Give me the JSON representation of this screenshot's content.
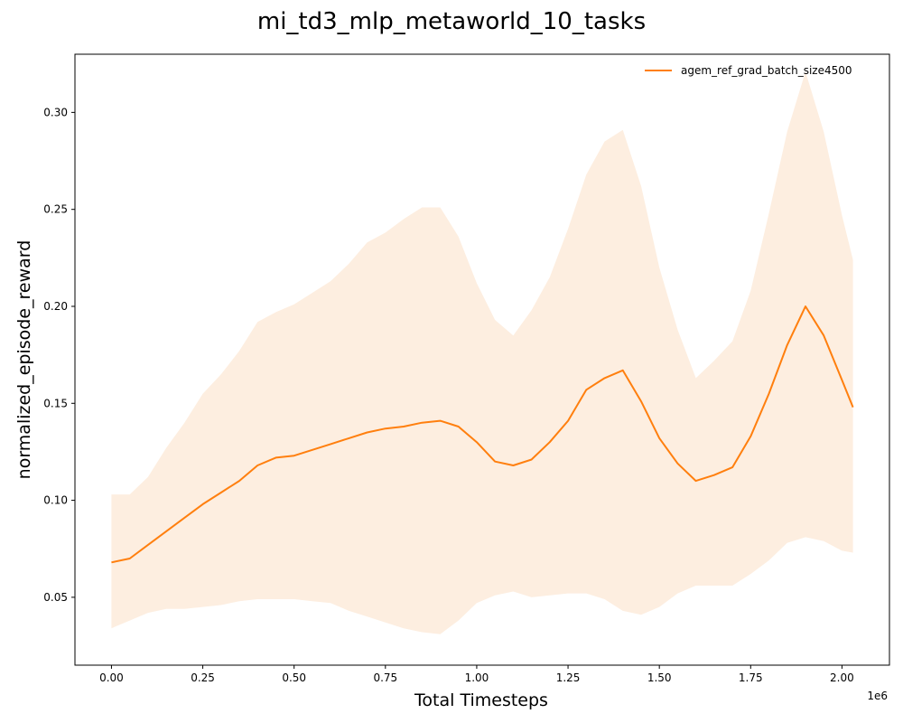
{
  "chart_data": {
    "type": "line",
    "title": "mi_td3_mlp_metaworld_10_tasks",
    "xlabel": "Total Timesteps",
    "ylabel": "normalized_episode_reward",
    "x_offset_label": "1e6",
    "xlim": [
      -0.1,
      2.13
    ],
    "ylim": [
      0.015,
      0.33
    ],
    "x_ticks": [
      0.0,
      0.25,
      0.5,
      0.75,
      1.0,
      1.25,
      1.5,
      1.75,
      2.0
    ],
    "x_tick_labels": [
      "0.00",
      "0.25",
      "0.50",
      "0.75",
      "1.00",
      "1.25",
      "1.50",
      "1.75",
      "2.00"
    ],
    "y_ticks": [
      0.05,
      0.1,
      0.15,
      0.2,
      0.25,
      0.3
    ],
    "y_tick_labels": [
      "0.05",
      "0.10",
      "0.15",
      "0.20",
      "0.25",
      "0.30"
    ],
    "grid": false,
    "legend_position": "top-right",
    "series": [
      {
        "name": "agem_ref_grad_batch_size4500",
        "color": "#ff7f0e",
        "band_color": "#fdeee0",
        "x": [
          0.0,
          0.05,
          0.1,
          0.15,
          0.2,
          0.25,
          0.3,
          0.35,
          0.4,
          0.45,
          0.5,
          0.55,
          0.6,
          0.65,
          0.7,
          0.75,
          0.8,
          0.85,
          0.9,
          0.95,
          1.0,
          1.05,
          1.1,
          1.15,
          1.2,
          1.25,
          1.3,
          1.35,
          1.4,
          1.45,
          1.5,
          1.55,
          1.6,
          1.65,
          1.7,
          1.75,
          1.8,
          1.85,
          1.9,
          1.95,
          2.0,
          2.03
        ],
        "mean": [
          0.068,
          0.07,
          0.077,
          0.084,
          0.091,
          0.098,
          0.104,
          0.11,
          0.118,
          0.122,
          0.123,
          0.126,
          0.129,
          0.132,
          0.135,
          0.137,
          0.138,
          0.14,
          0.141,
          0.138,
          0.13,
          0.12,
          0.118,
          0.121,
          0.13,
          0.141,
          0.157,
          0.163,
          0.167,
          0.151,
          0.132,
          0.119,
          0.11,
          0.113,
          0.117,
          0.133,
          0.155,
          0.18,
          0.2,
          0.185,
          0.162,
          0.148
        ],
        "upper": [
          0.103,
          0.103,
          0.112,
          0.127,
          0.14,
          0.155,
          0.165,
          0.177,
          0.192,
          0.197,
          0.201,
          0.207,
          0.213,
          0.222,
          0.233,
          0.238,
          0.245,
          0.251,
          0.251,
          0.236,
          0.212,
          0.193,
          0.185,
          0.198,
          0.215,
          0.24,
          0.268,
          0.285,
          0.291,
          0.262,
          0.22,
          0.188,
          0.163,
          0.172,
          0.182,
          0.208,
          0.248,
          0.29,
          0.321,
          0.29,
          0.247,
          0.224
        ],
        "lower": [
          0.034,
          0.038,
          0.042,
          0.044,
          0.044,
          0.045,
          0.046,
          0.048,
          0.049,
          0.049,
          0.049,
          0.048,
          0.047,
          0.043,
          0.04,
          0.037,
          0.034,
          0.032,
          0.031,
          0.038,
          0.047,
          0.051,
          0.053,
          0.05,
          0.051,
          0.052,
          0.052,
          0.049,
          0.043,
          0.041,
          0.045,
          0.052,
          0.056,
          0.056,
          0.056,
          0.062,
          0.069,
          0.078,
          0.081,
          0.079,
          0.074,
          0.073
        ]
      }
    ]
  }
}
